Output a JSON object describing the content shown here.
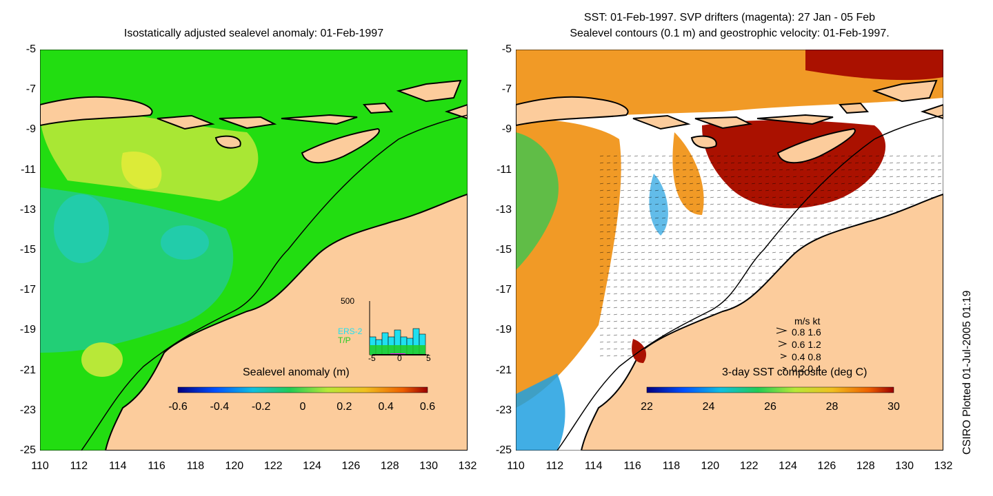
{
  "left": {
    "title": "Isostatically adjusted sealevel anomaly: 01-Feb-1997",
    "colorbar_label": "Sealevel anomaly (m)",
    "colorbar_ticks": [
      "-0.6",
      "-0.4",
      "-0.2",
      "0",
      "0.2",
      "0.4",
      "0.6"
    ],
    "inset": {
      "ymax_label": "500",
      "series": [
        "ERS-2",
        "T/P"
      ],
      "x_ticks": [
        "-5",
        "0",
        "5"
      ],
      "colors": {
        "ers2": "#1fe0f0",
        "tp": "#22cc22"
      }
    }
  },
  "right": {
    "title_line1": "SST: 01-Feb-1997. SVP drifters (magenta): 27 Jan - 05 Feb",
    "title_line2": "Sealevel contours (0.1 m) and geostrophic velocity: 01-Feb-1997.",
    "colorbar_label": "3-day SST composite (deg C)",
    "colorbar_ticks": [
      "22",
      "24",
      "26",
      "28",
      "30"
    ],
    "vector_key": {
      "header": "m/s  kt",
      "rows": [
        "0.8  1.6",
        "0.6  1.2",
        "0.4  0.8",
        "0.2  0.4"
      ]
    }
  },
  "axes": {
    "y_ticks": [
      "-5",
      "-7",
      "-9",
      "-11",
      "-13",
      "-15",
      "-17",
      "-19",
      "-21",
      "-23",
      "-25"
    ],
    "x_ticks": [
      "110",
      "112",
      "114",
      "116",
      "118",
      "120",
      "122",
      "124",
      "126",
      "128",
      "130",
      "132"
    ]
  },
  "credit": "CSIRO Plotted 01-Jul-2005 01:19",
  "colors": {
    "land": "#fccc9c",
    "sea_green": "#22dd11",
    "sea_cyan": "#22ccaa",
    "sst_red": "#aa1100",
    "sst_orange": "#ee8800"
  }
}
